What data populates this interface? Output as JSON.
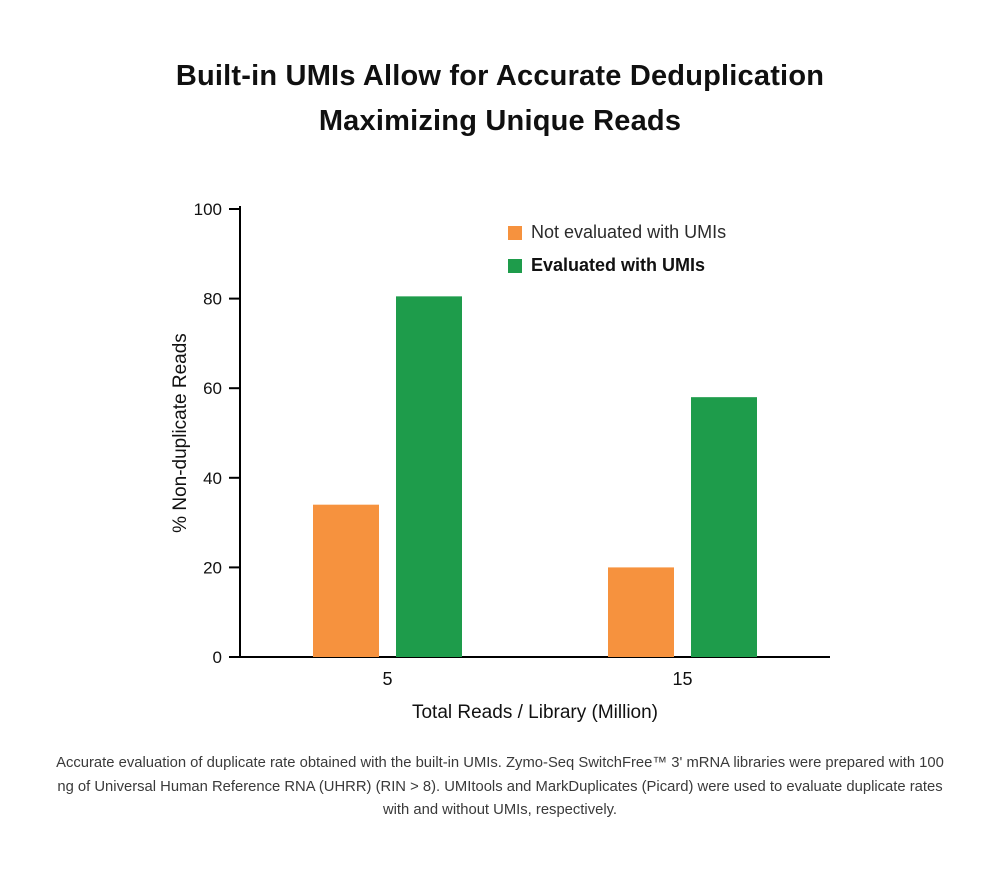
{
  "title": {
    "line1": "Built-in UMIs Allow for Accurate Deduplication",
    "line2": "Maximizing Unique Reads"
  },
  "chart_data": {
    "type": "bar",
    "categories": [
      "5",
      "15"
    ],
    "series": [
      {
        "name": "Not evaluated with UMIs",
        "color": "#F6923E",
        "values": [
          34,
          20
        ]
      },
      {
        "name": "Evaluated with UMIs",
        "color": "#1E9C4B",
        "values": [
          80.5,
          58
        ]
      }
    ],
    "title": "Built-in UMIs Allow for Accurate Deduplication Maximizing Unique Reads",
    "xlabel": "Total Reads / Library (Million)",
    "ylabel": "% Non-duplicate Reads",
    "ylim": [
      0,
      100
    ],
    "yticks": [
      0,
      20,
      40,
      60,
      80,
      100
    ],
    "grid": false,
    "legend_position": "top-right-inside"
  },
  "caption": "Accurate evaluation of duplicate rate obtained with the built-in UMIs. Zymo-Seq SwitchFree™ 3' mRNA libraries were prepared with 100 ng of Universal Human Reference RNA (UHRR) (RIN > 8). UMItools and MarkDuplicates (Picard) were used to evaluate duplicate rates with and without UMIs, respectively."
}
